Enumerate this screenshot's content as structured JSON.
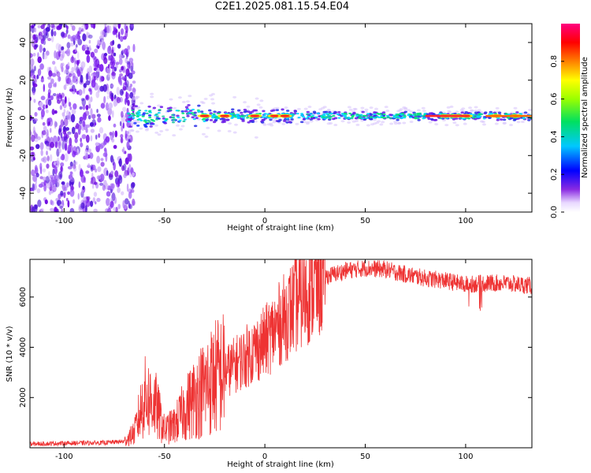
{
  "figure": {
    "title": "C2E1.2025.081.15.54.E04"
  },
  "chart_data": [
    {
      "type": "heatmap",
      "title": "C2E1.2025.081.15.54.E04",
      "xlabel": "Height of straight line (km)",
      "ylabel": "Frequency (Hz)",
      "xlim": [
        -117,
        133
      ],
      "ylim": [
        -50,
        50
      ],
      "x_ticks": [
        -100,
        -50,
        0,
        50,
        100
      ],
      "y_ticks": [
        -40,
        -20,
        0,
        20,
        40
      ],
      "colorbar": {
        "label": "Normalized spectral amplitude",
        "range": [
          0,
          1
        ],
        "ticks": [
          0.0,
          0.2,
          0.4,
          0.6,
          0.8
        ],
        "colormap": "rainbow (white-violet-blue-cyan-green-yellow-red-magenta)"
      },
      "description_of_features": {
        "noise_region_x": [
          -117,
          -68
        ],
        "signal_center_frequency_hz": 1,
        "strong_peaks_x": [
          -30,
          -20,
          -5,
          5,
          10,
          90,
          95,
          100,
          115,
          125
        ]
      }
    },
    {
      "type": "line",
      "xlabel": "Height of straight line (km)",
      "ylabel": "SNR (10 * v/v)",
      "xlim": [
        -117,
        133
      ],
      "ylim": [
        0,
        7500
      ],
      "x_ticks": [
        -100,
        -50,
        0,
        50,
        100
      ],
      "y_ticks": [
        2000,
        4000,
        6000
      ],
      "color": "#ee3333",
      "envelope": {
        "x": [
          -117,
          -100,
          -80,
          -70,
          -65,
          -60,
          -55,
          -50,
          -45,
          -40,
          -35,
          -30,
          -25,
          -20,
          -10,
          0,
          5,
          10,
          15,
          20,
          25,
          30,
          40,
          50,
          60,
          70,
          80,
          90,
          100,
          110,
          120,
          133
        ],
        "y": [
          150,
          180,
          200,
          250,
          600,
          2000,
          1800,
          700,
          900,
          1500,
          2000,
          2400,
          2800,
          3000,
          3600,
          4200,
          4700,
          5200,
          5700,
          6100,
          6500,
          6800,
          7050,
          7150,
          7100,
          6900,
          6750,
          6650,
          6500,
          6550,
          6550,
          6450
        ]
      }
    }
  ]
}
